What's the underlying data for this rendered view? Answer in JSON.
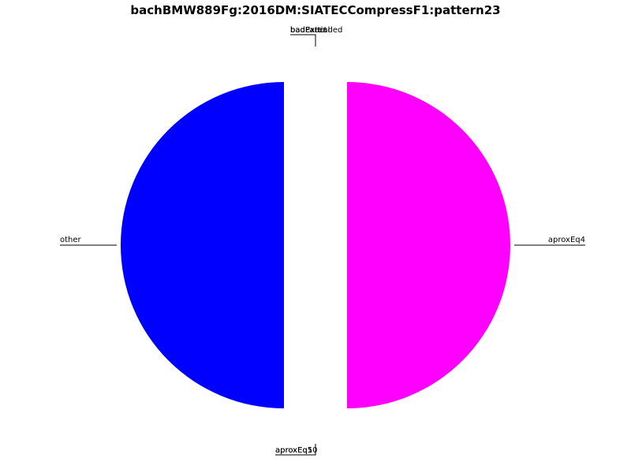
{
  "chart_data": {
    "type": "pie",
    "title": "bachBMW889Fg:2016DM:SIATECCompressF1:pattern23",
    "slices": [
      {
        "label": "other",
        "value": 50,
        "color": "#0000ff"
      },
      {
        "label": "aproxEq10",
        "value": 0,
        "color": "#000000"
      },
      {
        "label": "aproxEq5",
        "value": 0,
        "color": "#000000"
      },
      {
        "label": "aproxEq4",
        "value": 50,
        "color": "#ff00ff"
      },
      {
        "label": "badExtended",
        "value": 0,
        "color": "#000000"
      },
      {
        "label": "badPartial",
        "value": 0,
        "color": "#000000"
      },
      {
        "label": "badExact",
        "value": 0,
        "color": "#000000"
      }
    ]
  }
}
